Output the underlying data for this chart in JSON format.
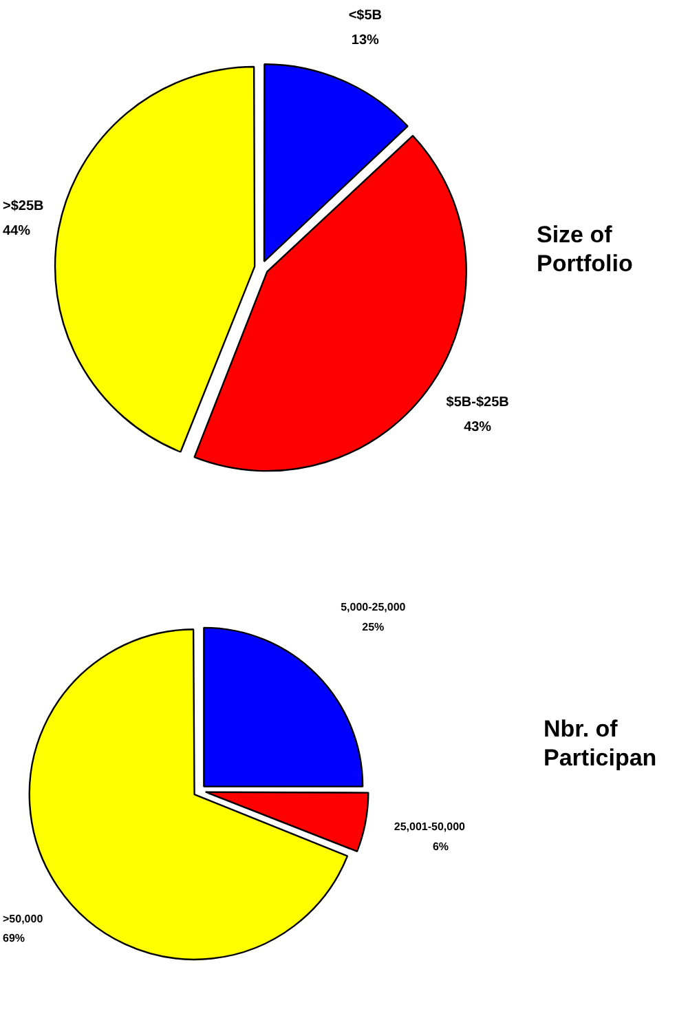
{
  "chart_data": [
    {
      "type": "pie",
      "title": "Size of Portfolio",
      "categories": [
        "<$5B",
        "$5B-$25B",
        ">$25B"
      ],
      "values": [
        13,
        43,
        44
      ],
      "colors": [
        "#0000ff",
        "#ff0000",
        "#ffff00"
      ],
      "value_labels": [
        "13%",
        "43%",
        "44%"
      ]
    },
    {
      "type": "pie",
      "title": "Nbr. of Participan",
      "categories": [
        "5,000-25,000",
        "25,001-50,000",
        ">50,000"
      ],
      "values": [
        25,
        6,
        69
      ],
      "colors": [
        "#0000ff",
        "#ff0000",
        "#ffff00"
      ],
      "value_labels": [
        "25%",
        "6%",
        "69%"
      ]
    }
  ]
}
